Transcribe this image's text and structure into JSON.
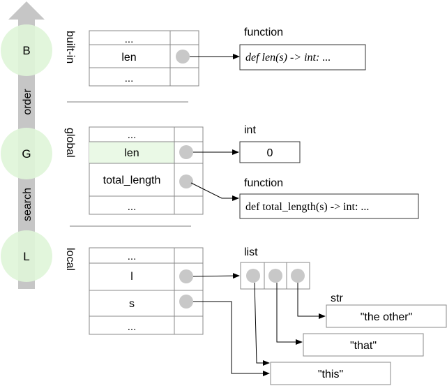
{
  "search_order": {
    "arrow_label_top": "order",
    "arrow_label_bottom": "search",
    "scopes": [
      {
        "letter": "B",
        "name": "built-in"
      },
      {
        "letter": "G",
        "name": "global"
      },
      {
        "letter": "L",
        "name": "local"
      }
    ]
  },
  "builtin_frame": {
    "rows": [
      "...",
      "len",
      "..."
    ],
    "objects": [
      {
        "type_label": "function",
        "value": "def len(s) -> int: ..."
      }
    ]
  },
  "global_frame": {
    "rows": [
      "...",
      "len",
      "total_length",
      "..."
    ],
    "objects": [
      {
        "type_label": "int",
        "value": "0"
      },
      {
        "type_label": "function",
        "value": "def total_length(s) -> int: ..."
      }
    ]
  },
  "local_frame": {
    "rows": [
      "...",
      "l",
      "s",
      "..."
    ],
    "list_label": "list",
    "str_label": "str",
    "strings": [
      "\"the other\"",
      "\"that\"",
      "\"this\""
    ]
  },
  "colors": {
    "scope_circle": "#dff5d8",
    "highlight_row": "#eaf9e6",
    "arrow_bar": "#c6c6c6",
    "pointer_dot": "#c8c8c8",
    "divider": "#aaaaaa"
  }
}
